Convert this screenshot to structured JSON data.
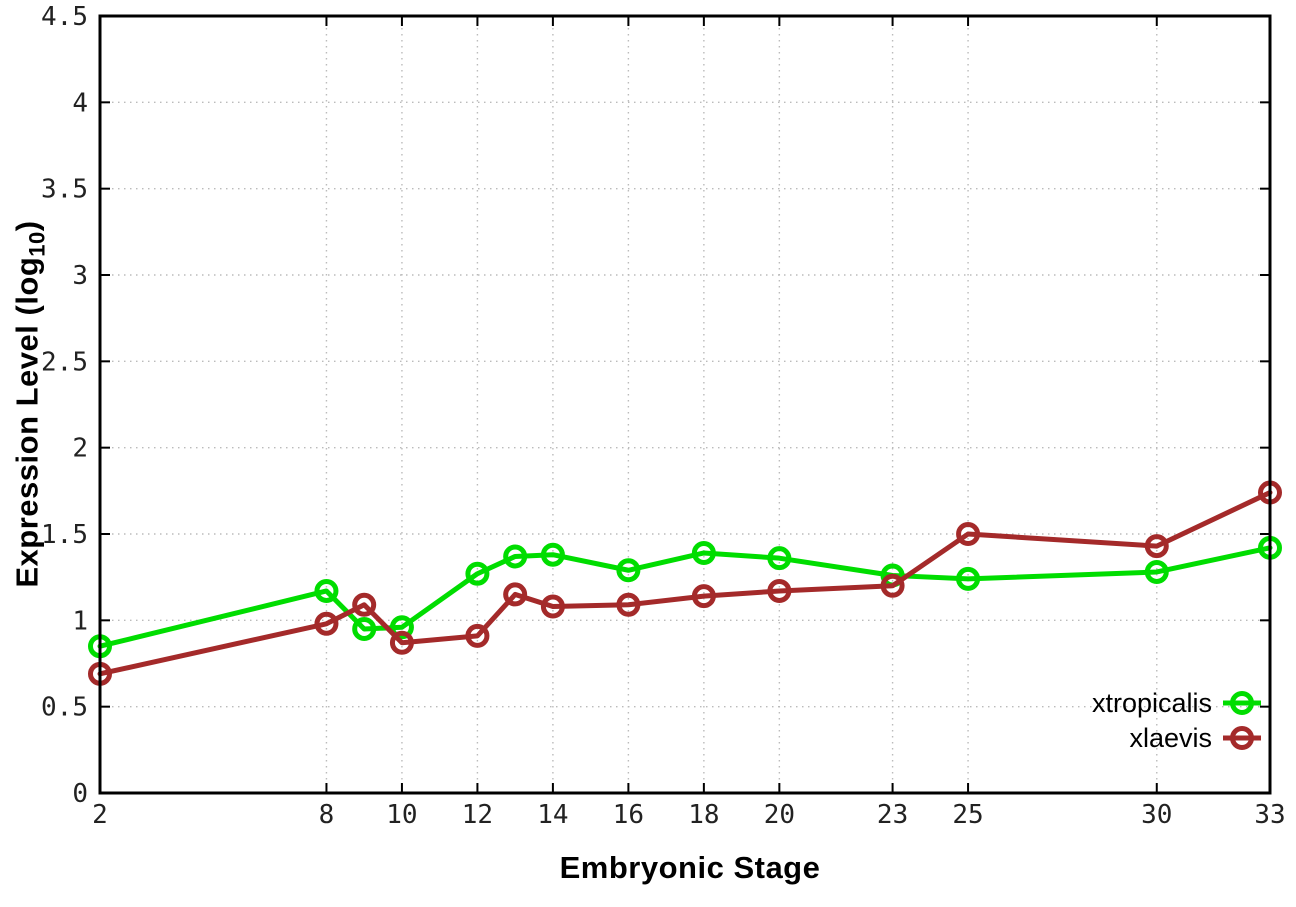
{
  "chart_data": {
    "type": "line",
    "x": [
      2,
      8,
      9,
      10,
      12,
      13,
      14,
      16,
      18,
      20,
      23,
      25,
      30,
      33
    ],
    "series": [
      {
        "name": "xtropicalis",
        "color": "#00dd00",
        "values": [
          0.85,
          1.17,
          0.95,
          0.96,
          1.27,
          1.37,
          1.38,
          1.29,
          1.39,
          1.36,
          1.26,
          1.24,
          1.28,
          1.42
        ]
      },
      {
        "name": "xlaevis",
        "color": "#a42a2a",
        "values": [
          0.69,
          0.98,
          1.09,
          0.87,
          0.91,
          1.15,
          1.08,
          1.09,
          1.14,
          1.17,
          1.2,
          1.5,
          1.43,
          1.74
        ]
      }
    ],
    "title": "",
    "xlabel": "Embryonic Stage",
    "ylabel": {
      "main": "Expression Level (log",
      "sub": "10",
      "end": ")"
    },
    "xlim": [
      2,
      33
    ],
    "ylim": [
      0,
      4.5
    ],
    "x_ticks": [
      2,
      8,
      10,
      12,
      14,
      16,
      18,
      20,
      23,
      25,
      30,
      33
    ],
    "y_ticks": [
      0,
      0.5,
      1,
      1.5,
      2,
      2.5,
      3,
      3.5,
      4,
      4.5
    ],
    "grid": true,
    "legend_position": "bottom-right",
    "colors": {
      "background": "#ffffff",
      "grid": "#bbbbbb",
      "axis": "#000000",
      "tick_label": "#222222"
    }
  }
}
